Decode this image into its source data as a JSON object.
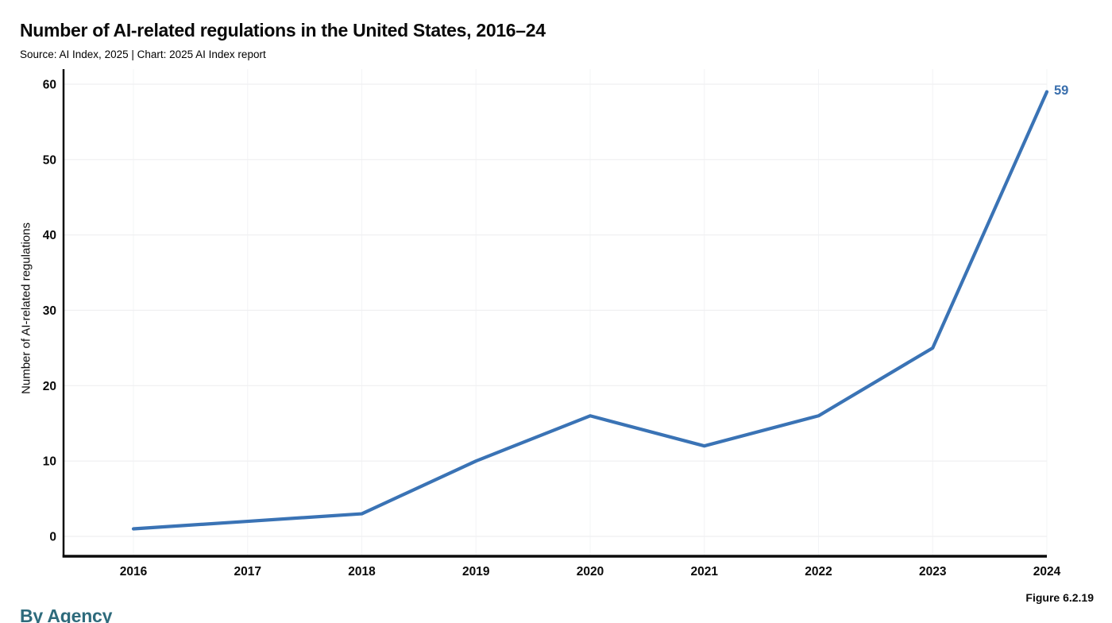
{
  "page": {
    "title": "Number of AI-related regulations in the United States, 2016–24",
    "subtitle": "Source: AI Index, 2025 | Chart: 2025 AI Index report",
    "figure_label": "Figure 6.2.19",
    "next_section_heading": "By Agency"
  },
  "chart_data": {
    "type": "line",
    "title": "Number of AI-related regulations in the United States, 2016–24",
    "source_note": "Source: AI Index, 2025 | Chart: 2025 AI Index report",
    "x": [
      "2016",
      "2017",
      "2018",
      "2019",
      "2020",
      "2021",
      "2022",
      "2023",
      "2024"
    ],
    "values": [
      1,
      2,
      3,
      10,
      16,
      12,
      16,
      25,
      59
    ],
    "xlabel": "",
    "ylabel": "Number of AI-related regulations",
    "ylim": [
      0,
      60
    ],
    "yticks": [
      0,
      10,
      20,
      30,
      40,
      50,
      60
    ],
    "grid": true,
    "legend": "none",
    "end_label": "59",
    "colors": {
      "line": "#3a73b5",
      "end_label_text": "#3a6fad",
      "grid_horizontal": "#efeff1",
      "grid_vertical": "#f3f4f6",
      "axis_spine": "#0b0b0b"
    }
  }
}
